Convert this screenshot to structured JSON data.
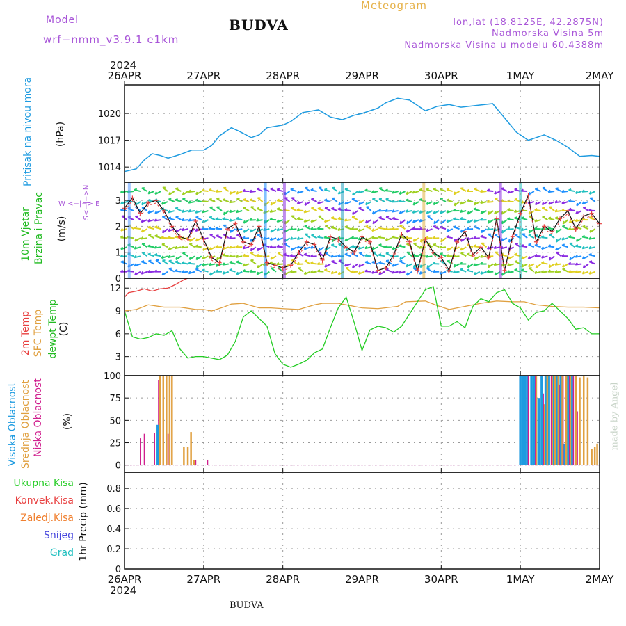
{
  "header": {
    "model_label": "Model",
    "model_name": "wrf−nmm_v3.9.1  e1km",
    "title": "BUDVA",
    "meteogram_label": "Meteogram",
    "lonlat": "lon,lat (18.8125E, 42.2875N)",
    "elevation": "Nadmorska Visina 5m",
    "model_elevation": "Nadmorska Visina u modelu 60.4388m"
  },
  "footer": {
    "station": "BUDVA",
    "watermark": "made by Angel"
  },
  "time_axis": {
    "labels": [
      "26APR",
      "27APR",
      "28APR",
      "29APR",
      "30APR",
      "1MAY",
      "2MAY"
    ],
    "year": "2024"
  },
  "panels": {
    "pressure": {
      "label": "Pritisak na nivou mora",
      "unit": "(hPa)"
    },
    "wind": {
      "label_line1": "10m Vjetar",
      "label_line2": "Brzina i Pravac",
      "unit": "(m/s)",
      "compass_ns": "S<−|−>N",
      "compass_we": "W <−|−> E"
    },
    "temp": {
      "label_2m": "2m Temp",
      "label_sfc": "SFC Temp",
      "label_dewpt": "dewpt Temp",
      "unit": "(C)"
    },
    "cloud": {
      "label_high": "Visoka Oblacnost",
      "label_mid": "Srednja Oblacnost",
      "label_low": "Niska Oblacnost",
      "unit": "(%)"
    },
    "precip": {
      "unit": "1hr Precip (mm)",
      "legend": [
        "Ukupna Kisa",
        "Konvek.Kisa",
        "Zaledj.Kisa",
        "Snijeg",
        "Grad"
      ]
    }
  },
  "colors": {
    "pressure": "#1e9be0",
    "temp2m": "#e84040",
    "sfc": "#e0a040",
    "dewpt": "#22cc22",
    "high": "#1e9be0",
    "mid": "#e0a040",
    "low": "#d01f8e",
    "total": "#22cc22",
    "conv": "#e84040",
    "frz": "#f08030",
    "snow": "#4444dd",
    "grad": "#22c0c0",
    "wind_obs": "#111111",
    "wind_model": "#e84040"
  },
  "chart_data": [
    {
      "type": "line",
      "name": "pressure",
      "x_unit": "days since 26APR",
      "ylim": [
        1012.3,
        1023.2
      ],
      "yticks": [
        1014,
        1017,
        1020
      ],
      "series": [
        {
          "name": "Pritisak na nivou mora",
          "x": [
            0,
            0.15,
            0.25,
            0.35,
            0.45,
            0.55,
            0.7,
            0.85,
            1.0,
            1.1,
            1.2,
            1.35,
            1.45,
            1.6,
            1.7,
            1.8,
            2.0,
            2.1,
            2.25,
            2.45,
            2.6,
            2.75,
            2.9,
            3.0,
            3.2,
            3.3,
            3.45,
            3.6,
            3.8,
            3.95,
            4.1,
            4.25,
            4.45,
            4.65,
            4.8,
            4.95,
            5.1,
            5.3,
            5.45,
            5.6,
            5.75,
            5.9,
            6.0
          ],
          "values": [
            1013.5,
            1013.8,
            1014.8,
            1015.5,
            1015.3,
            1015.0,
            1015.4,
            1015.9,
            1015.9,
            1016.4,
            1017.5,
            1018.4,
            1018.0,
            1017.3,
            1017.6,
            1018.4,
            1018.7,
            1019.1,
            1020.1,
            1020.4,
            1019.6,
            1019.3,
            1019.8,
            1020.0,
            1020.6,
            1021.2,
            1021.7,
            1021.5,
            1020.3,
            1020.8,
            1021.0,
            1020.7,
            1020.9,
            1021.1,
            1019.5,
            1017.9,
            1017.0,
            1017.6,
            1017.0,
            1016.2,
            1015.2,
            1015.3,
            1015.2
          ]
        }
      ]
    },
    {
      "type": "line",
      "name": "wind",
      "ylim": [
        0,
        3.7
      ],
      "yticks": [
        0,
        1,
        2,
        3
      ],
      "series": [
        {
          "name": "10m Vjetar",
          "x": [
            0,
            0.1,
            0.2,
            0.3,
            0.4,
            0.5,
            0.6,
            0.7,
            0.8,
            0.9,
            1.0,
            1.1,
            1.2,
            1.3,
            1.4,
            1.5,
            1.6,
            1.7,
            1.8,
            1.9,
            2.0,
            2.1,
            2.2,
            2.3,
            2.4,
            2.5,
            2.6,
            2.7,
            2.8,
            2.9,
            3.0,
            3.1,
            3.2,
            3.3,
            3.4,
            3.5,
            3.6,
            3.7,
            3.8,
            3.9,
            4.0,
            4.1,
            4.2,
            4.3,
            4.4,
            4.5,
            4.6,
            4.7,
            4.8,
            4.9,
            5.0,
            5.1,
            5.2,
            5.3,
            5.4,
            5.5,
            5.6,
            5.7,
            5.8,
            5.9,
            6.0
          ],
          "values": [
            2.7,
            3.1,
            2.5,
            2.9,
            3.0,
            2.6,
            2.0,
            1.6,
            1.5,
            2.2,
            1.5,
            0.8,
            0.6,
            1.9,
            2.1,
            1.4,
            1.3,
            2.0,
            0.6,
            0.5,
            0.4,
            0.5,
            1.0,
            1.4,
            1.3,
            0.7,
            1.6,
            1.5,
            1.2,
            1.0,
            1.6,
            1.4,
            0.3,
            0.4,
            0.9,
            1.7,
            1.4,
            0.3,
            1.5,
            1.0,
            0.8,
            0.3,
            1.4,
            1.8,
            0.9,
            1.2,
            0.8,
            2.3,
            0.3,
            1.6,
            2.5,
            3.2,
            1.4,
            2.0,
            1.8,
            2.3,
            2.6,
            1.9,
            2.4,
            2.5,
            2.1
          ]
        }
      ]
    },
    {
      "type": "line",
      "name": "temperature",
      "ylim": [
        0.5,
        13.3
      ],
      "yticks": [
        3,
        6,
        9,
        12
      ],
      "series": [
        {
          "name": "2m Temp",
          "x": [
            0,
            0.05,
            0.15,
            0.25,
            0.35,
            0.45,
            0.55,
            0.65,
            0.75,
            0.8
          ],
          "values": [
            10.8,
            11.4,
            11.6,
            11.9,
            11.6,
            11.9,
            12.0,
            12.5,
            13.1,
            13.3
          ]
        },
        {
          "name": "SFC Temp",
          "x": [
            0,
            0.15,
            0.3,
            0.5,
            0.7,
            0.9,
            1.0,
            1.1,
            1.25,
            1.35,
            1.5,
            1.7,
            1.85,
            2.0,
            2.2,
            2.4,
            2.5,
            2.7,
            2.9,
            3.0,
            3.2,
            3.45,
            3.55,
            3.8,
            3.95,
            4.1,
            4.3,
            4.5,
            4.7,
            4.9,
            5.05,
            5.2,
            5.4,
            5.6,
            5.8,
            6.0
          ],
          "values": [
            9.0,
            9.2,
            9.8,
            9.5,
            9.5,
            9.2,
            9.2,
            9.0,
            9.5,
            9.9,
            10.0,
            9.4,
            9.4,
            9.3,
            9.2,
            9.8,
            10.0,
            10.0,
            9.6,
            9.4,
            9.3,
            9.6,
            10.2,
            10.3,
            9.7,
            9.2,
            9.6,
            10.0,
            10.3,
            10.2,
            10.2,
            9.8,
            9.6,
            9.5,
            9.5,
            9.4
          ]
        },
        {
          "name": "dewpt Temp",
          "x": [
            0,
            0.1,
            0.2,
            0.3,
            0.4,
            0.5,
            0.6,
            0.7,
            0.8,
            0.9,
            1.0,
            1.1,
            1.2,
            1.3,
            1.4,
            1.5,
            1.6,
            1.7,
            1.8,
            1.9,
            2.0,
            2.1,
            2.2,
            2.3,
            2.4,
            2.5,
            2.6,
            2.7,
            2.8,
            2.9,
            3.0,
            3.1,
            3.2,
            3.3,
            3.4,
            3.5,
            3.6,
            3.7,
            3.8,
            3.9,
            4.0,
            4.1,
            4.2,
            4.3,
            4.4,
            4.5,
            4.6,
            4.7,
            4.8,
            4.9,
            5.0,
            5.1,
            5.2,
            5.3,
            5.4,
            5.5,
            5.6,
            5.7,
            5.8,
            5.9,
            6.0
          ],
          "values": [
            9.0,
            5.6,
            5.3,
            5.5,
            6.0,
            5.8,
            6.4,
            4.0,
            2.8,
            3.0,
            3.0,
            2.8,
            2.6,
            3.2,
            5.0,
            8.2,
            9.0,
            8.0,
            7.0,
            3.4,
            2.0,
            1.6,
            2.0,
            2.5,
            3.5,
            4.0,
            6.8,
            9.4,
            10.8,
            7.5,
            3.8,
            6.5,
            7.0,
            6.8,
            6.2,
            7.0,
            8.6,
            10.2,
            11.8,
            12.2,
            7.0,
            7.0,
            7.6,
            6.8,
            9.6,
            10.6,
            10.2,
            11.4,
            11.8,
            10.0,
            9.4,
            7.8,
            8.8,
            9.0,
            10.0,
            9.0,
            8.0,
            6.6,
            6.8,
            6.0,
            6.0
          ]
        }
      ]
    },
    {
      "type": "bar",
      "name": "cloud",
      "ylim": [
        -8,
        100
      ],
      "yticks": [
        0,
        25,
        50,
        75,
        100
      ],
      "series": [
        {
          "name": "Niska Oblacnost",
          "x": [
            0.2,
            0.25,
            0.38,
            0.43,
            0.55,
            0.9,
            1.05
          ],
          "values": [
            30,
            35,
            36,
            95,
            35,
            6,
            6
          ]
        },
        {
          "name": "Srednja Oblacnost",
          "x": [
            0.45,
            0.49,
            0.53,
            0.57,
            0.6,
            0.75,
            0.8,
            0.84,
            0.88
          ],
          "values": [
            100,
            100,
            100,
            100,
            100,
            20,
            20,
            37,
            6
          ]
        },
        {
          "name": "Visoka Oblacnost",
          "x": [
            0.42,
            5.0,
            5.03,
            5.06,
            5.09,
            5.14,
            5.17,
            5.23,
            5.27,
            5.32,
            5.36,
            5.42,
            5.46,
            5.51,
            5.56,
            5.6,
            5.65
          ],
          "values": [
            45,
            100,
            100,
            100,
            100,
            100,
            100,
            75,
            100,
            100,
            100,
            100,
            100,
            100,
            24,
            100,
            100
          ]
        },
        {
          "name": "Srednja Oblacnost (1MAY)",
          "x": [
            5.2,
            5.3,
            5.34,
            5.4,
            5.44,
            5.48,
            5.53,
            5.58,
            5.63,
            5.7,
            5.75,
            5.8,
            5.85,
            5.9,
            5.94,
            5.97
          ],
          "values": [
            100,
            68,
            100,
            100,
            100,
            100,
            100,
            100,
            100,
            100,
            98,
            100,
            98,
            18,
            20,
            24
          ]
        },
        {
          "name": "Niska Oblacnost (1MAY)",
          "x": [
            5.1,
            5.19,
            5.29,
            5.39,
            5.49,
            5.54,
            5.62,
            5.67,
            5.72
          ],
          "values": [
            100,
            100,
            80,
            100,
            90,
            100,
            100,
            100,
            60
          ]
        }
      ]
    },
    {
      "type": "bar",
      "name": "precip",
      "ylim": [
        0,
        0.96
      ],
      "yticks": [
        0,
        0.2,
        0.4,
        0.6,
        0.8
      ],
      "series": [
        {
          "name": "Ukupna Kisa",
          "x": [],
          "values": []
        }
      ]
    }
  ]
}
